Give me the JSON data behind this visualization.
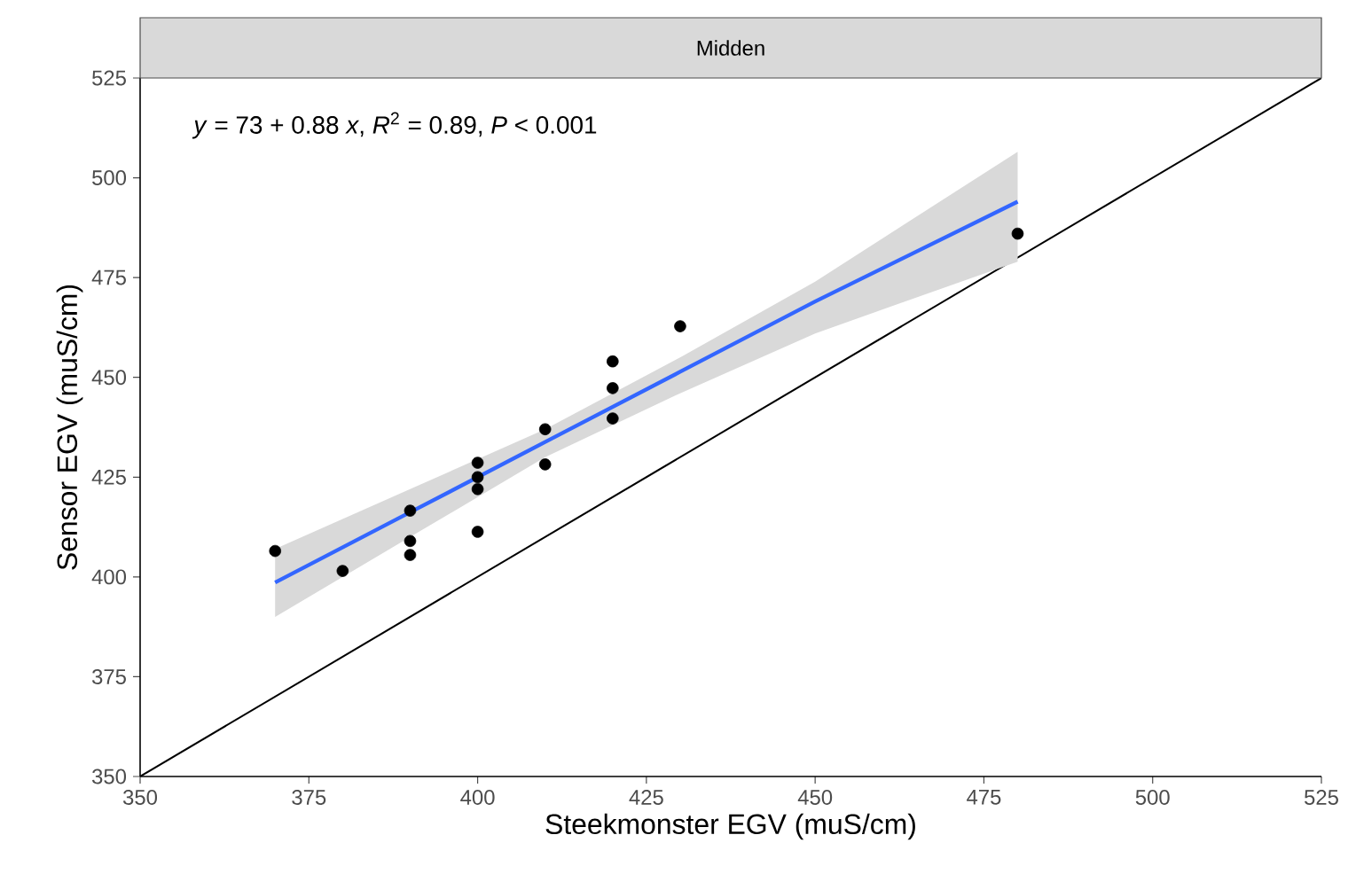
{
  "chart_data": {
    "type": "scatter",
    "title": "Midden",
    "xlabel": "Steekmonster EGV (muS/cm)",
    "ylabel": "Sensor EGV (muS/cm)",
    "annotations": [
      "*y* = 73 + 0.88 *x*, *R*$^{2}$ = 0.89, *P* < 0.001"
    ],
    "xlim": [
      350,
      525
    ],
    "ylim": [
      350,
      525
    ],
    "xticks": [
      350,
      375,
      400,
      425,
      450,
      475,
      500,
      525
    ],
    "yticks": [
      350,
      375,
      400,
      425,
      450,
      475,
      500,
      525
    ],
    "grid": false,
    "series": [
      {
        "type": "line",
        "color": "#000000",
        "marker": "none",
        "x": [
          350,
          525
        ],
        "values": [
          350,
          525
        ]
      },
      {
        "type": "line",
        "color": "#3366ff",
        "marker": "none",
        "x": [
          370,
          390,
          410,
          430,
          450,
          480
        ],
        "values": [
          398.6,
          416.2,
          433.8,
          451.4,
          469,
          494
        ],
        "lower": [
          390,
          410,
          430,
          446,
          461,
          479
        ],
        "upper": [
          407,
          422,
          437,
          455,
          474,
          506.5
        ]
      },
      {
        "color": "#000000",
        "marker": "circle",
        "x": [
          370,
          380,
          390,
          390,
          390,
          400,
          400,
          400,
          400,
          410,
          410,
          420,
          420,
          420,
          430,
          480
        ],
        "values": [
          406.5,
          401.5,
          416.6,
          409,
          405.5,
          428.6,
          425,
          422,
          411.3,
          437,
          428.2,
          454,
          447.3,
          439.7,
          462.8,
          486
        ]
      }
    ]
  }
}
